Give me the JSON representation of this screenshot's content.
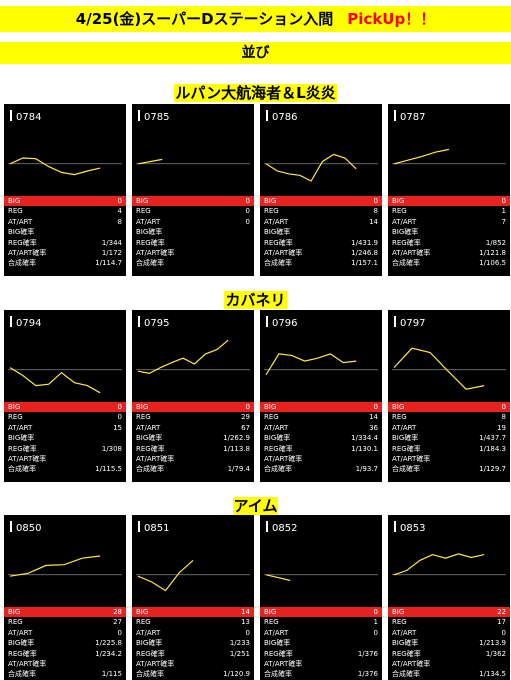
{
  "title": "4/25(金)スーパーDステーション入間",
  "pickup": "PickUp！！",
  "group_label": "並び",
  "stat_labels": [
    "BIG",
    "REG",
    "AT/ART",
    "BIG確率",
    "REG確率",
    "AT/ART確率",
    "合成確率"
  ],
  "colors": {
    "accent_yellow": "#ffff00",
    "big_row_red": "#e8221f",
    "card_bg": "#000000",
    "line": "#ffe84d"
  },
  "sections": [
    {
      "name": "ルパン大航海者＆L炎炎",
      "machines": [
        {
          "number": "0784",
          "stats": [
            "0",
            "4",
            "8",
            "",
            "1/344",
            "1/172",
            "1/114.7"
          ],
          "graph": [
            0.58,
            0.5,
            0.51,
            0.62,
            0.7,
            0.73,
            0.68,
            0.64
          ]
        },
        {
          "number": "0785",
          "stats": [
            "0",
            "0",
            "0",
            "",
            "",
            "",
            ""
          ],
          "graph": [
            0.58,
            0.55,
            0.52
          ]
        },
        {
          "number": "0786",
          "stats": [
            "0",
            "8",
            "14",
            "",
            "1/431.9",
            "1/246.8",
            "1/157.1"
          ],
          "graph": [
            0.58,
            0.68,
            0.72,
            0.74,
            0.82,
            0.55,
            0.45,
            0.5,
            0.65
          ]
        },
        {
          "number": "0787",
          "stats": [
            "0",
            "1",
            "7",
            "",
            "1/852",
            "1/121.8",
            "1/106.5"
          ],
          "graph": [
            0.58,
            0.53,
            0.48,
            0.42,
            0.38
          ]
        }
      ]
    },
    {
      "name": "カバネリ",
      "machines": [
        {
          "number": "0794",
          "stats": [
            "0",
            "0",
            "15",
            "",
            "1/308",
            "",
            "1/115.5"
          ],
          "graph": [
            0.55,
            0.66,
            0.8,
            0.78,
            0.62,
            0.76,
            0.8,
            0.9
          ]
        },
        {
          "number": "0795",
          "stats": [
            "0",
            "29",
            "67",
            "1/262.9",
            "1/113.8",
            "",
            "1/79.4"
          ],
          "graph": [
            0.6,
            0.63,
            0.55,
            0.48,
            0.42,
            0.5,
            0.36,
            0.3,
            0.17
          ]
        },
        {
          "number": "0796",
          "stats": [
            "0",
            "14",
            "36",
            "1/334.4",
            "1/130.1",
            "",
            "1/93.7"
          ],
          "graph": [
            0.65,
            0.36,
            0.38,
            0.46,
            0.42,
            0.36,
            0.48,
            0.46
          ]
        },
        {
          "number": "0797",
          "stats": [
            "0",
            "8",
            "19",
            "1/437.7",
            "1/184.3",
            "",
            "1/129.7"
          ],
          "graph": [
            0.55,
            0.28,
            0.34,
            0.6,
            0.85,
            0.8
          ]
        }
      ]
    },
    {
      "name": "アイム",
      "machines": [
        {
          "number": "0850",
          "stats": [
            "28",
            "27",
            "0",
            "1/225.8",
            "1/234.2",
            "",
            "1/115"
          ],
          "graph": [
            0.6,
            0.56,
            0.45,
            0.44,
            0.35,
            0.32
          ]
        },
        {
          "number": "0851",
          "stats": [
            "14",
            "13",
            "0",
            "1/233",
            "1/251",
            "",
            "1/120.9"
          ],
          "graph": [
            0.6,
            0.68,
            0.8,
            0.55,
            0.38
          ]
        },
        {
          "number": "0852",
          "stats": [
            "0",
            "1",
            "0",
            "",
            "1/376",
            "",
            "1/376"
          ],
          "graph": [
            0.58,
            0.62,
            0.66
          ]
        },
        {
          "number": "0853",
          "stats": [
            "22",
            "17",
            "0",
            "1/213.9",
            "1/362",
            "",
            "1/134.5"
          ],
          "graph": [
            0.58,
            0.52,
            0.38,
            0.3,
            0.35,
            0.29,
            0.34,
            0.3
          ]
        }
      ]
    }
  ]
}
